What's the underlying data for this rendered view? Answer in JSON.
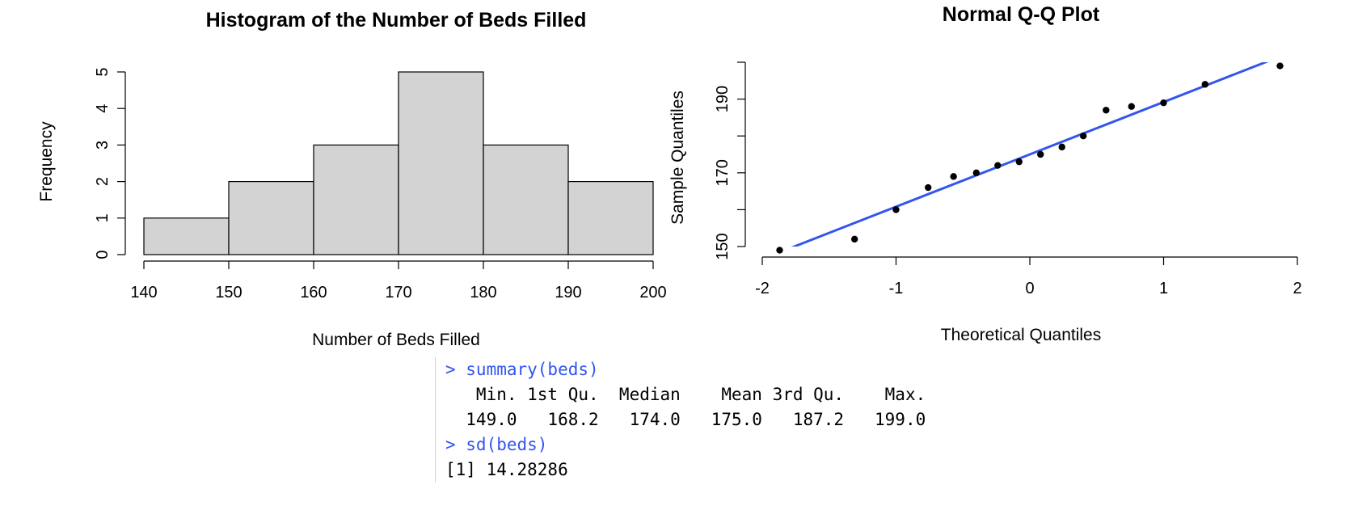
{
  "chart_data": [
    {
      "type": "bar",
      "title": "Histogram of the Number of Beds Filled",
      "xlabel": "Number of Beds Filled",
      "ylabel": "Frequency",
      "bins": [
        [
          140,
          150
        ],
        [
          150,
          160
        ],
        [
          160,
          170
        ],
        [
          170,
          180
        ],
        [
          180,
          190
        ],
        [
          190,
          200
        ]
      ],
      "values": [
        1,
        2,
        3,
        5,
        3,
        2
      ],
      "xlim": [
        140,
        200
      ],
      "ylim": [
        0,
        5
      ],
      "x_ticks": [
        "140",
        "150",
        "160",
        "170",
        "180",
        "190",
        "200"
      ],
      "y_ticks": [
        "0",
        "1",
        "2",
        "3",
        "4",
        "5"
      ],
      "bar_fill": "#d3d3d3",
      "grid": false
    },
    {
      "type": "scatter",
      "title": "Normal Q-Q Plot",
      "xlabel": "Theoretical Quantiles",
      "ylabel": "Sample Quantiles",
      "x": [
        -1.87,
        -1.31,
        -1.0,
        -0.76,
        -0.57,
        -0.4,
        -0.24,
        -0.08,
        0.08,
        0.24,
        0.4,
        0.57,
        0.76,
        1.0,
        1.31,
        1.87
      ],
      "y": [
        149,
        152,
        160,
        166,
        169,
        170,
        172,
        173,
        175,
        177,
        180,
        187,
        188,
        189,
        194,
        199
      ],
      "reference_line": {
        "intercept": 175.0,
        "slope": 14.2,
        "color": "#3355ee"
      },
      "xlim": [
        -2,
        2
      ],
      "ylim": [
        150,
        200
      ],
      "x_ticks": [
        "-2",
        "-1",
        "0",
        "1",
        "2"
      ],
      "y_ticks": [
        "150",
        "170",
        "190"
      ],
      "grid": false
    }
  ],
  "console": {
    "cmd1": "> summary(beds)",
    "header": "   Min. 1st Qu.  Median    Mean 3rd Qu.    Max. ",
    "values": "  149.0   168.2   174.0   175.0   187.2   199.0 ",
    "cmd2": "> sd(beds)",
    "result": "[1] 14.28286"
  }
}
